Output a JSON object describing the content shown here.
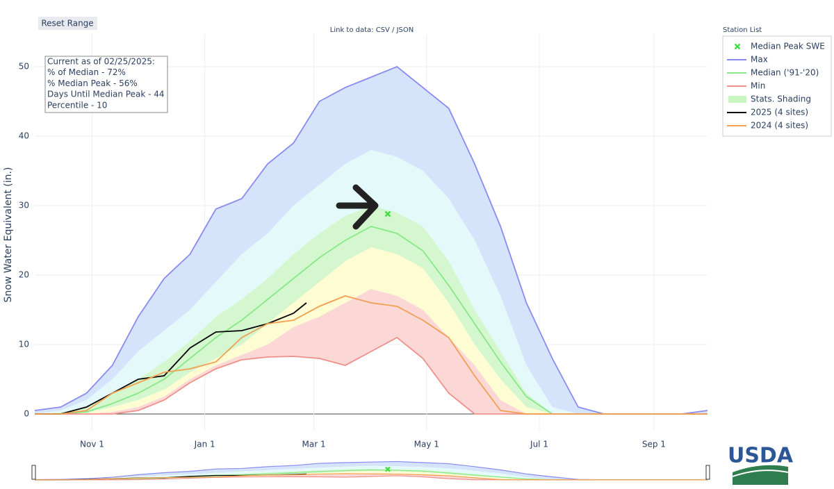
{
  "chart_data": {
    "type": "line",
    "button": "Reset Range",
    "link_text": "Link to data: CSV / JSON",
    "legend_title": "Station List",
    "y_label": "Snow Water Equivalent (in.)",
    "annotations": [
      "Current as of 02/25/2025:",
      "% of Median - 72%",
      "% Median Peak - 56%",
      "Days Until Median Peak - 44",
      "Percentile - 10"
    ],
    "logo_text": "USDA",
    "grid": true,
    "x": [
      0,
      14,
      28,
      42,
      56,
      70,
      84,
      98,
      112,
      126,
      140,
      154,
      168,
      182,
      196,
      210,
      224,
      238,
      252,
      266,
      280,
      294,
      308,
      322,
      336,
      350,
      364
    ],
    "xlim": [
      0,
      364
    ],
    "xticks": [
      {
        "value": 31,
        "label": "Nov 1"
      },
      {
        "value": 92,
        "label": "Jan 1"
      },
      {
        "value": 151,
        "label": "Mar 1"
      },
      {
        "value": 212,
        "label": "May 1"
      },
      {
        "value": 273,
        "label": "Jul 1"
      },
      {
        "value": 335,
        "label": "Sep 1"
      }
    ],
    "ylim": [
      -2.4,
      54.6
    ],
    "yticks": [
      0,
      10,
      20,
      30,
      40,
      50
    ],
    "peak": {
      "name": "Median Peak SWE",
      "color": "#44dd44",
      "x": 191,
      "y": 28.8
    },
    "shading": {
      "name": "Stats. Shading",
      "color": "#c8f5c0",
      "colors": [
        "#d6e4fb",
        "#e3f9fa",
        "#d4f7cf",
        "#fdfcd2",
        "#fbd8d6"
      ],
      "levels": [
        [
          0,
          0.5,
          2,
          5,
          9,
          12,
          15,
          19,
          23,
          26,
          30,
          33,
          36,
          38,
          37,
          35,
          31,
          25,
          17,
          7,
          1,
          0,
          0,
          0,
          0,
          0,
          0
        ],
        [
          0,
          0.2,
          1,
          3,
          5,
          7.5,
          10.5,
          14,
          16.5,
          19.5,
          23,
          26,
          28.5,
          30,
          29,
          27,
          22,
          15,
          9,
          3,
          0,
          0,
          0,
          0,
          0,
          0,
          0
        ],
        [
          0,
          0,
          0.2,
          1,
          2,
          3.5,
          6,
          8,
          10,
          13,
          16,
          19,
          22,
          24,
          23,
          21,
          16,
          10,
          5,
          1,
          0,
          0,
          0,
          0,
          0,
          0,
          0
        ],
        [
          0,
          0,
          0,
          0.3,
          1,
          2.5,
          5,
          7,
          8.5,
          10,
          12.5,
          14,
          16,
          18,
          17,
          15,
          11,
          7,
          2,
          0,
          0,
          0,
          0,
          0,
          0,
          0,
          0
        ]
      ]
    },
    "series": [
      {
        "name": "Max",
        "color": "#8a8af0",
        "values": [
          0.5,
          1,
          3,
          7,
          14,
          19.5,
          23,
          29.5,
          31,
          36,
          39,
          45,
          47,
          48.5,
          50,
          47,
          44,
          36,
          27,
          16,
          8,
          1,
          0,
          0,
          0,
          0,
          0.5
        ]
      },
      {
        "name": "Median ('91-'20)",
        "color": "#88e888",
        "values": [
          0,
          0,
          0.3,
          1.5,
          3,
          5,
          8,
          11,
          13.5,
          16.5,
          19.5,
          22.5,
          25,
          27,
          26,
          23.5,
          18.5,
          13,
          7.5,
          2.5,
          0,
          0,
          0,
          0,
          0,
          0,
          0
        ]
      },
      {
        "name": "Min",
        "color": "#f0908a",
        "values": [
          0,
          0,
          0,
          0,
          0.5,
          2,
          4.5,
          6.5,
          7.8,
          8.2,
          8.3,
          8,
          7,
          9,
          11,
          8,
          3,
          0,
          0,
          0,
          0,
          0,
          0,
          0,
          0,
          0,
          0
        ]
      },
      {
        "name": "2025 (4 sites)",
        "color": "#000000",
        "x": [
          0,
          14,
          28,
          42,
          56,
          70,
          84,
          98,
          112,
          126,
          140,
          147
        ],
        "values": [
          0,
          0,
          1,
          3,
          5,
          5.5,
          9.5,
          11.8,
          12,
          13,
          14.5,
          16
        ]
      },
      {
        "name": "2024 (4 sites)",
        "color": "#f0a050",
        "values": [
          0,
          0,
          0.5,
          3,
          4.5,
          6,
          6.5,
          7.5,
          11,
          13,
          13.5,
          15.5,
          17,
          16,
          15.5,
          13.5,
          11,
          5.5,
          0.5,
          0,
          0,
          0,
          0,
          0,
          0,
          0,
          0
        ]
      }
    ]
  }
}
